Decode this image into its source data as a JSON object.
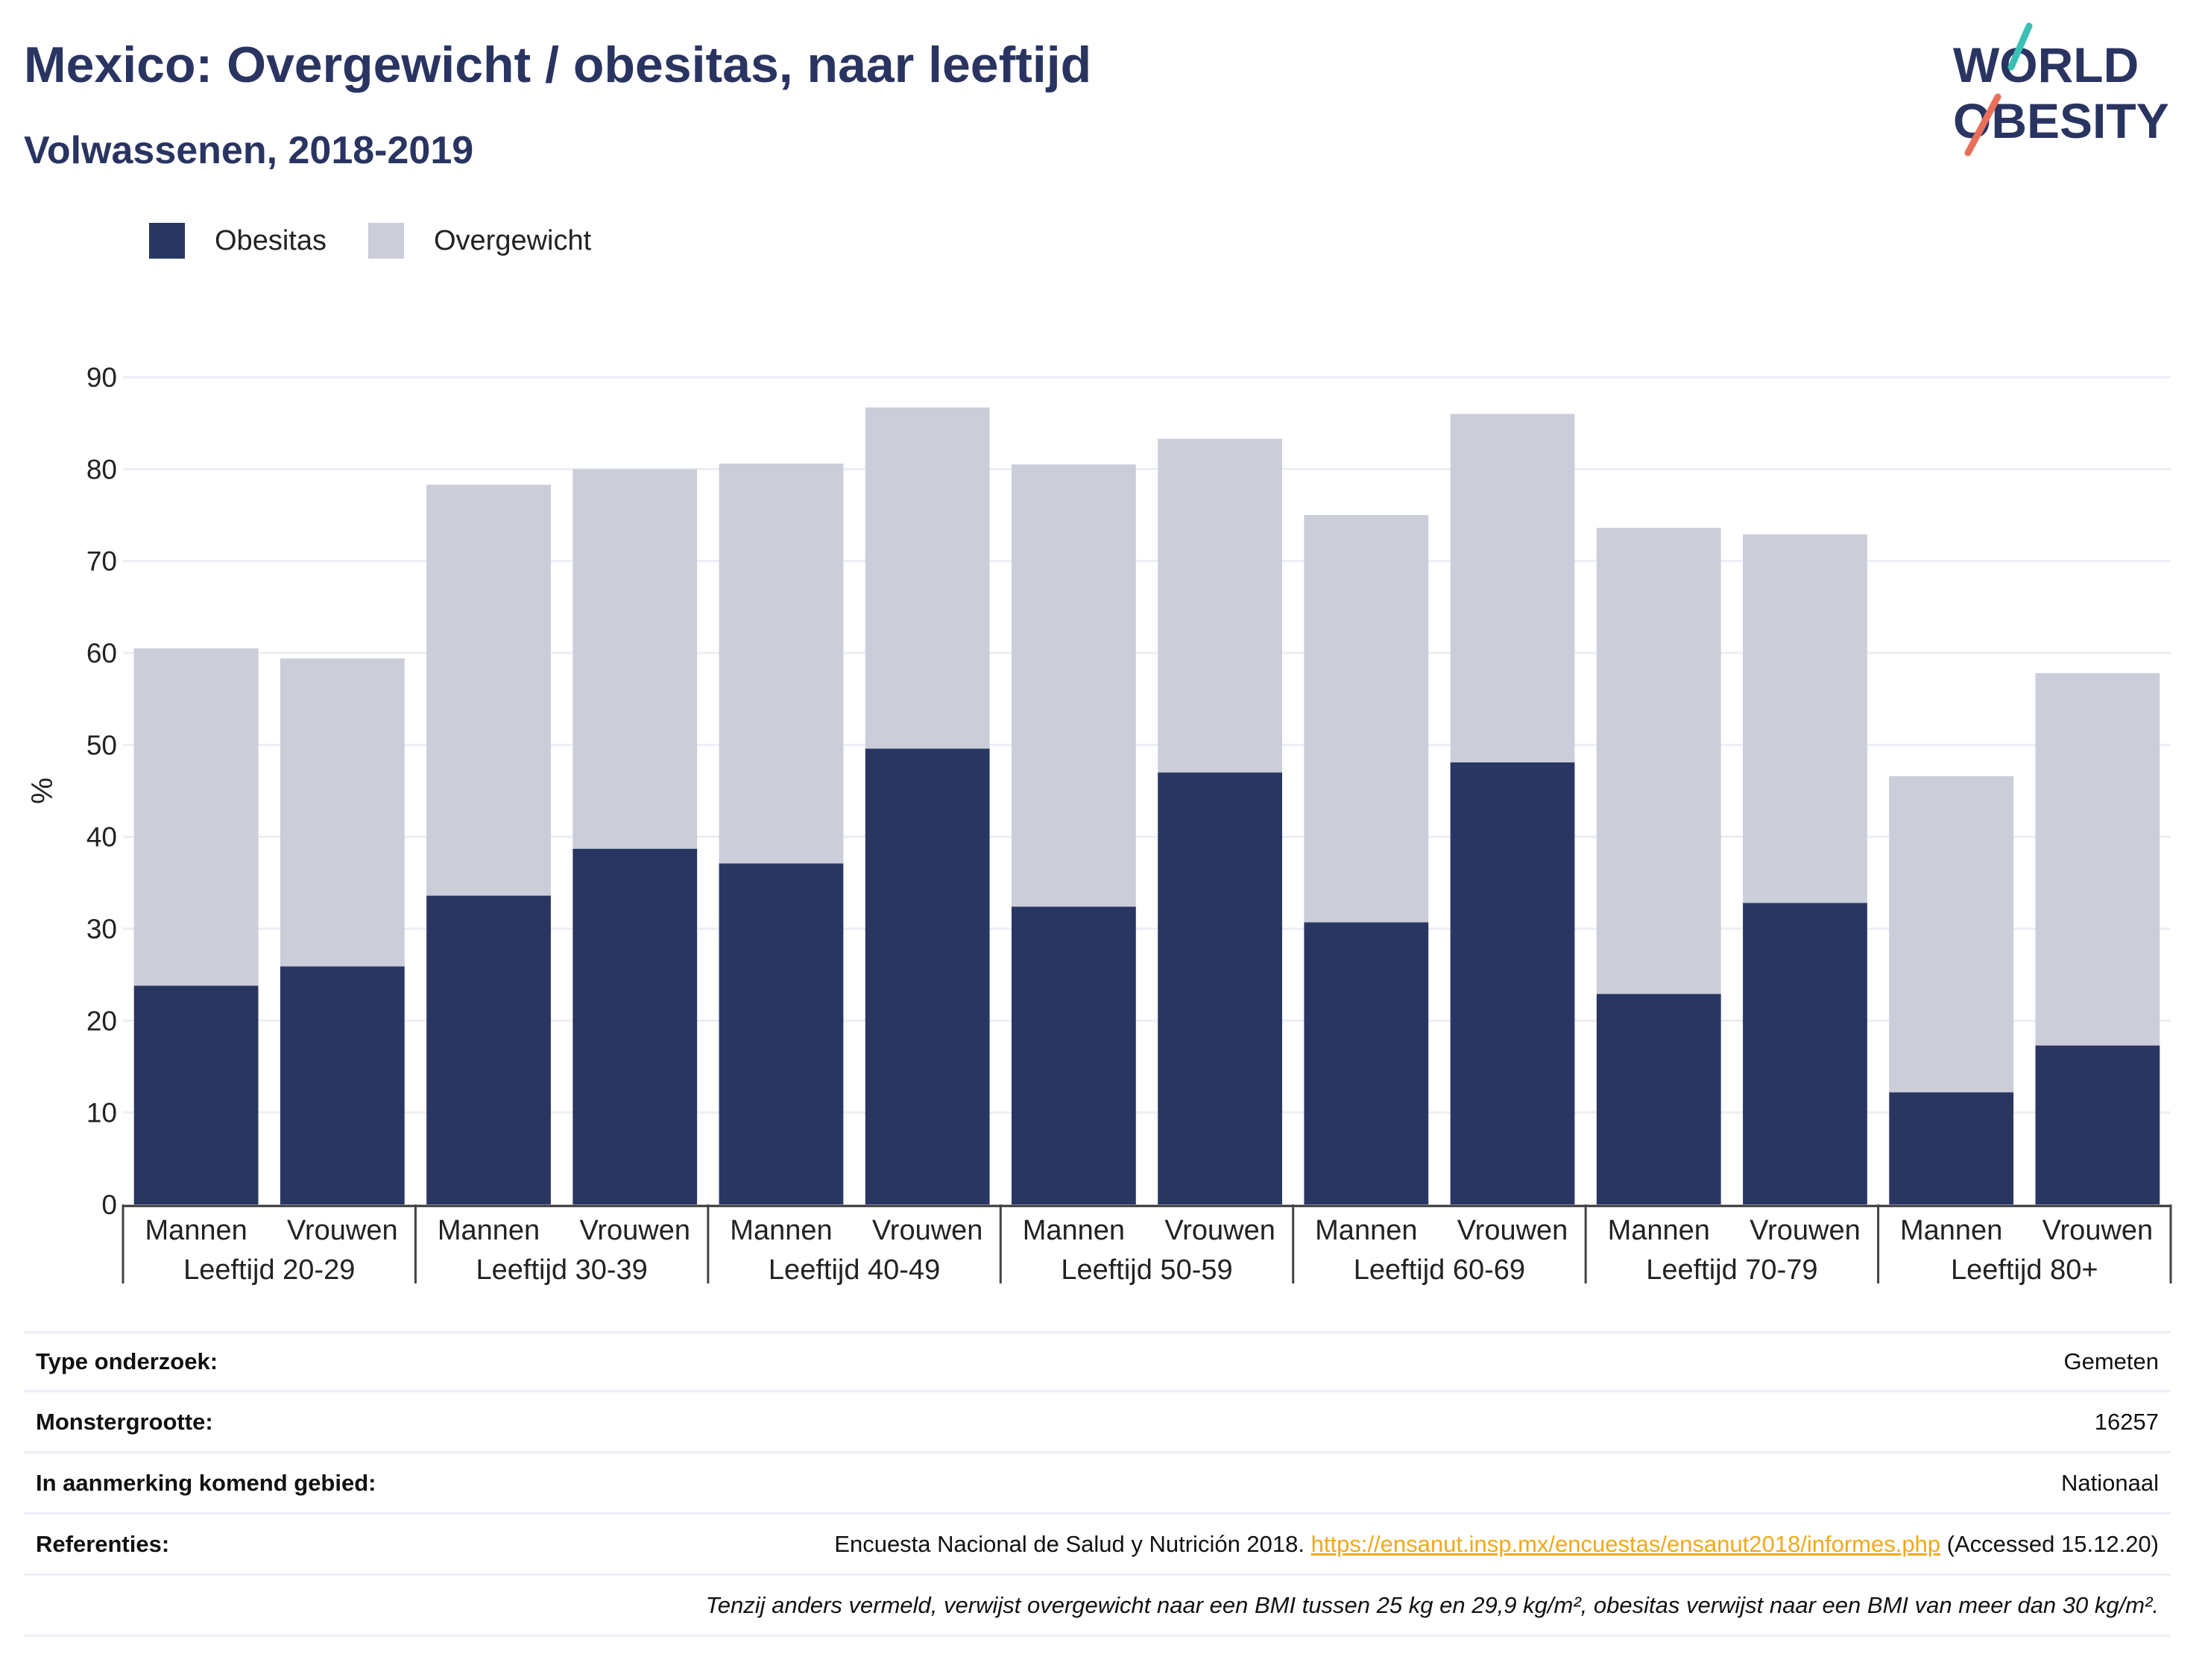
{
  "title": "Mexico: Overgewicht / obesitas, naar leeftijd",
  "subtitle": "Volwassenen, 2018-2019",
  "logo": {
    "line1": "WORLD",
    "line2": "OBESITY"
  },
  "colors": {
    "obesitas": "#2a3662",
    "overgewicht": "#cbcdd9",
    "grid": "#eceef5",
    "link": "#f0a91c",
    "logo_stroke_top": "#3bbfb5",
    "logo_stroke_bottom": "#e8705a"
  },
  "chart_data": {
    "type": "bar",
    "stacked": true,
    "ylabel": "%",
    "ylim": [
      0,
      90
    ],
    "yticks": [
      0,
      10,
      20,
      30,
      40,
      50,
      60,
      70,
      80,
      90
    ],
    "grid": true,
    "legend_position": "top-left",
    "groups": [
      "Leeftijd 20-29",
      "Leeftijd 30-39",
      "Leeftijd 40-49",
      "Leeftijd 50-59",
      "Leeftijd 60-69",
      "Leeftijd 70-79",
      "Leeftijd 80+"
    ],
    "sub_categories": [
      "Mannen",
      "Vrouwen"
    ],
    "series": [
      {
        "name": "Obesitas",
        "values": [
          23.8,
          25.9,
          33.6,
          38.7,
          37.1,
          49.6,
          32.4,
          47.0,
          30.7,
          48.1,
          22.9,
          32.8,
          12.2,
          17.3
        ]
      },
      {
        "name": "Overgewicht",
        "values": [
          36.7,
          33.5,
          44.7,
          41.3,
          43.5,
          37.1,
          48.1,
          36.3,
          44.3,
          37.9,
          50.7,
          40.1,
          34.4,
          40.5
        ]
      }
    ]
  },
  "meta": {
    "rows": [
      {
        "key": "Type onderzoek:",
        "value": "Gemeten"
      },
      {
        "key": "Monstergrootte:",
        "value": "16257"
      },
      {
        "key": "In aanmerking komend gebied:",
        "value": "Nationaal"
      }
    ],
    "ref_key": "Referenties:",
    "ref_text": "Encuesta Nacional de Salud y Nutrición 2018.",
    "ref_link": "https://ensanut.insp.mx/encuestas/ensanut2018/informes.php",
    "ref_accessed": "(Accessed 15.12.20)",
    "note": "Tenzij anders vermeld, verwijst overgewicht naar een BMI tussen 25 kg en 29,9 kg/m², obesitas verwijst naar een BMI van meer dan 30 kg/m²."
  }
}
